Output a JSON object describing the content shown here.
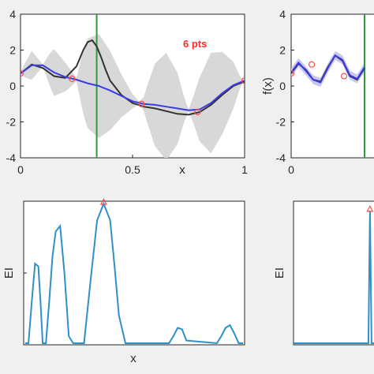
{
  "colors": {
    "figure_bg": "#f0f0f0",
    "axes_bg": "#ffffff",
    "band": "#d8d8d8",
    "band_right": "#c9c9f0",
    "truth": "#333333",
    "mean": "#3a3ae6",
    "next_sample": "#2e9a3a",
    "samples": "#ff4d4d",
    "ei": "#2f8fc8"
  },
  "chart_data": [
    {
      "id": "top-left",
      "type": "line",
      "annotation": "6 pts",
      "xlabel": "x",
      "ylabel": "",
      "xlim": [
        0,
        1
      ],
      "ylim": [
        -4,
        4
      ],
      "xticks": [
        "0",
        "0.5",
        "1"
      ],
      "yticks": [
        "4",
        "2",
        "0",
        "-2",
        "-4"
      ],
      "grid": false,
      "series": [
        {
          "role": "truth",
          "x": [
            0,
            0.05,
            0.1,
            0.15,
            0.2,
            0.25,
            0.28,
            0.3,
            0.32,
            0.34,
            0.36,
            0.38,
            0.4,
            0.45,
            0.5,
            0.55,
            0.6,
            0.65,
            0.7,
            0.75,
            0.8,
            0.85,
            0.9,
            0.95,
            1.0
          ],
          "y": [
            0.7,
            1.2,
            1.0,
            0.55,
            0.45,
            1.1,
            2.0,
            2.45,
            2.55,
            2.2,
            1.6,
            0.9,
            0.3,
            -0.5,
            -0.95,
            -1.15,
            -1.25,
            -1.4,
            -1.55,
            -1.6,
            -1.45,
            -1.05,
            -0.5,
            0.0,
            0.25
          ]
        },
        {
          "role": "mean",
          "x": [
            0,
            0.05,
            0.1,
            0.15,
            0.2,
            0.25,
            0.3,
            0.35,
            0.4,
            0.45,
            0.5,
            0.55,
            0.6,
            0.65,
            0.7,
            0.75,
            0.8,
            0.85,
            0.9,
            0.95,
            1.0
          ],
          "y": [
            0.7,
            1.15,
            1.15,
            0.75,
            0.5,
            0.35,
            0.15,
            0.0,
            -0.25,
            -0.55,
            -0.85,
            -1.0,
            -1.05,
            -1.15,
            -1.25,
            -1.35,
            -1.3,
            -0.95,
            -0.4,
            0.05,
            0.3
          ]
        },
        {
          "role": "band-width",
          "x": [
            0,
            0.02,
            0.05,
            0.08,
            0.1,
            0.13,
            0.15,
            0.2,
            0.25,
            0.28,
            0.3,
            0.35,
            0.4,
            0.45,
            0.5,
            0.53,
            0.55,
            0.57,
            0.6,
            0.65,
            0.7,
            0.73,
            0.75,
            0.77,
            0.8,
            0.85,
            0.9,
            0.95,
            0.98,
            1.0
          ],
          "y": [
            0.05,
            0.4,
            0.8,
            0.35,
            0.05,
            0.9,
            1.3,
            0.8,
            0.1,
            1.8,
            2.5,
            2.9,
            2.2,
            1.2,
            0.4,
            0.05,
            0.4,
            1.2,
            2.3,
            3.0,
            2.0,
            0.7,
            0.05,
            0.7,
            1.8,
            2.8,
            2.3,
            1.3,
            0.3,
            0.05
          ]
        }
      ],
      "samples": [
        {
          "x": 0,
          "y": 0.7
        },
        {
          "x": 0.23,
          "y": 0.4
        },
        {
          "x": 0.54,
          "y": -1.0
        },
        {
          "x": 0.79,
          "y": -1.45
        },
        {
          "x": 1.0,
          "y": 0.3
        }
      ],
      "next_sample_x": 0.34
    },
    {
      "id": "top-right",
      "type": "line",
      "xlabel": "",
      "ylabel": "f(x)",
      "xlim": [
        0,
        1
      ],
      "ylim": [
        -4,
        4
      ],
      "xticks": [
        "0"
      ],
      "yticks": [
        "4",
        "2",
        "0",
        "-2",
        "-4"
      ],
      "grid": false,
      "series": [
        {
          "role": "truth",
          "x": [
            0,
            0.1,
            0.2,
            0.3,
            0.4,
            0.5,
            0.6,
            0.7,
            0.8,
            0.9,
            1.0
          ],
          "y": [
            0.7,
            1.25,
            0.9,
            0.35,
            0.25,
            1.05,
            1.7,
            1.4,
            0.55,
            0.35,
            1.0
          ]
        },
        {
          "role": "mean",
          "x": [
            0,
            0.1,
            0.2,
            0.3,
            0.4,
            0.5,
            0.6,
            0.7,
            0.8,
            0.9,
            1.0
          ],
          "y": [
            0.75,
            1.3,
            0.85,
            0.35,
            0.2,
            1.0,
            1.7,
            1.45,
            0.6,
            0.4,
            1.05
          ]
        }
      ],
      "samples": [
        {
          "x": 0,
          "y": 0.7
        },
        {
          "x": 0.28,
          "y": 1.2
        },
        {
          "x": 0.72,
          "y": 0.55
        }
      ],
      "next_sample_x": 1.0
    },
    {
      "id": "bottom-left",
      "type": "line",
      "xlabel": "x",
      "ylabel": "EI",
      "xlim": [
        0,
        1
      ],
      "ylim": [
        0,
        1
      ],
      "xticks": [],
      "yticks": [],
      "grid": false,
      "series": [
        {
          "role": "ei",
          "x": [
            0,
            0.015,
            0.03,
            0.045,
            0.06,
            0.07,
            0.08,
            0.095,
            0.11,
            0.125,
            0.14,
            0.16,
            0.18,
            0.2,
            0.22,
            0.24,
            0.27,
            0.3,
            0.33,
            0.36,
            0.39,
            0.41,
            0.43,
            0.46,
            0.49,
            0.52,
            0.55,
            0.58,
            0.61,
            0.64,
            0.65,
            0.66,
            0.68,
            0.7,
            0.72,
            0.74,
            0.88,
            0.9,
            0.92,
            0.94,
            0.96,
            0.98,
            1.0
          ],
          "y": [
            0,
            0,
            0.3,
            0.57,
            0.55,
            0.3,
            0,
            0,
            0.3,
            0.62,
            0.8,
            0.84,
            0.5,
            0.05,
            0,
            0,
            0,
            0.45,
            0.88,
            1.0,
            0.88,
            0.55,
            0.2,
            0,
            0,
            0,
            0,
            0,
            0,
            0,
            0,
            0,
            0.05,
            0.11,
            0.1,
            0.02,
            0,
            0.05,
            0.11,
            0.13,
            0.07,
            0,
            0
          ]
        }
      ],
      "max_marker": {
        "x": 0.36,
        "y": 1.0
      }
    },
    {
      "id": "bottom-right",
      "type": "line",
      "xlabel": "",
      "ylabel": "EI",
      "xlim": [
        0,
        1
      ],
      "ylim": [
        0,
        1
      ],
      "xticks": [],
      "yticks": [],
      "grid": false,
      "series": [
        {
          "role": "ei",
          "x": [
            0,
            0.9,
            0.93,
            0.95,
            0.97,
            1.0
          ],
          "y": [
            0,
            0,
            0,
            0.95,
            0,
            0
          ]
        }
      ],
      "max_marker": {
        "x": 0.95,
        "y": 0.95
      }
    }
  ]
}
